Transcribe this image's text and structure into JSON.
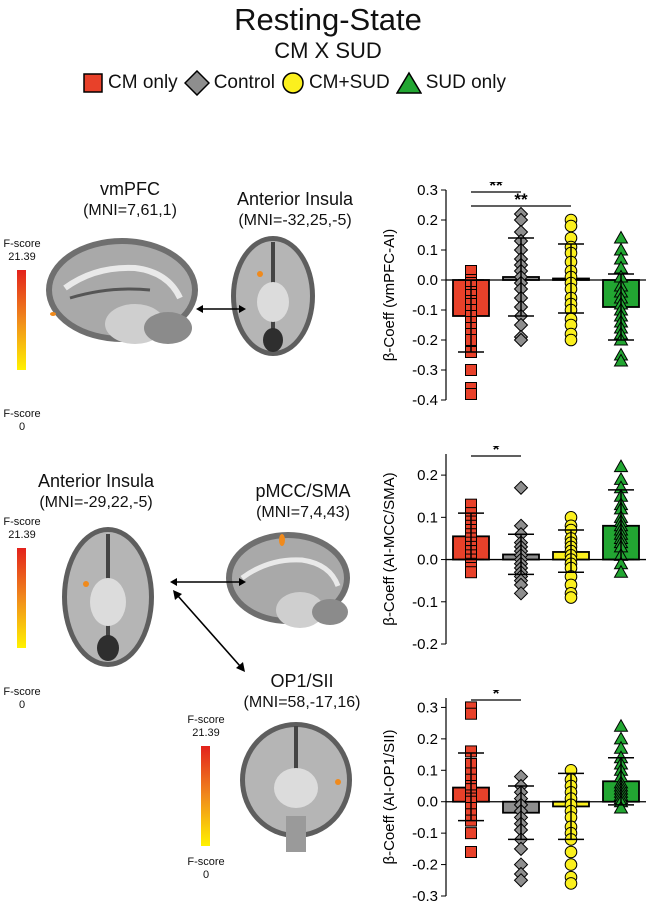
{
  "figure": {
    "title": "Resting-State",
    "subtitle": "CM X SUD",
    "legend": [
      {
        "label": "CM only",
        "marker": "square",
        "color": "#e8412a"
      },
      {
        "label": "Control",
        "marker": "diamond",
        "color": "#8e8e8e"
      },
      {
        "label": "CM+SUD",
        "marker": "circle",
        "color": "#fbf01e"
      },
      {
        "label": "SUD only",
        "marker": "triangle",
        "color": "#22a632"
      }
    ]
  },
  "brain_panels": {
    "row1": {
      "left_region": "vmPFC",
      "left_mni": "(MNI=7,61,1)",
      "right_region": "Anterior Insula",
      "right_mni": "(MNI=-32,25,-5)",
      "cbar_top": "F-score\n21.39",
      "cbar_bottom": "F-score\n0"
    },
    "row2": {
      "left_region": "Anterior Insula",
      "left_mni": "(MNI=-29,22,-5)",
      "right_region": "pMCC/SMA",
      "right_mni": "(MNI=7,4,43)",
      "third_region": "OP1/SII",
      "third_mni": "(MNI=58,-17,16)",
      "cbar_top": "F-score\n21.39",
      "cbar_bottom": "F-score\n0",
      "cbar2_top": "F-score\n21.39",
      "cbar2_bottom": "F-score\n0"
    }
  },
  "chart_data": [
    {
      "type": "bar",
      "categories": [
        "CM only",
        "Control",
        "CM+SUD",
        "SUD only"
      ],
      "colors": [
        "#e8412a",
        "#8e8e8e",
        "#fbf01e",
        "#22a632"
      ],
      "markers": [
        "square",
        "diamond",
        "circle",
        "triangle"
      ],
      "values": [
        -0.12,
        0.01,
        0.005,
        -0.09
      ],
      "error": [
        [
          -0.24,
          0.0
        ],
        [
          -0.12,
          0.14
        ],
        [
          -0.11,
          0.12
        ],
        [
          -0.2,
          0.02
        ]
      ],
      "points": [
        [
          0.03,
          0.0,
          -0.01,
          -0.02,
          -0.04,
          -0.05,
          -0.07,
          -0.08,
          -0.1,
          -0.12,
          -0.14,
          -0.16,
          -0.18,
          -0.2,
          -0.24,
          -0.3,
          -0.36,
          -0.38
        ],
        [
          0.22,
          0.2,
          0.16,
          0.13,
          0.1,
          0.07,
          0.05,
          0.03,
          0.01,
          -0.01,
          -0.03,
          -0.06,
          -0.09,
          -0.12,
          -0.15,
          -0.19,
          -0.2
        ],
        [
          0.2,
          0.18,
          0.14,
          0.11,
          0.09,
          0.06,
          0.03,
          0.01,
          -0.01,
          -0.03,
          -0.06,
          -0.08,
          -0.1,
          -0.13,
          -0.15,
          -0.18,
          -0.2
        ],
        [
          0.14,
          0.1,
          0.07,
          0.04,
          0.01,
          -0.02,
          -0.04,
          -0.06,
          -0.08,
          -0.1,
          -0.12,
          -0.14,
          -0.16,
          -0.18,
          -0.2,
          -0.25,
          -0.27
        ]
      ],
      "ylabel": "β-Coeff (vmPFC-AI)",
      "ylim": [
        -0.4,
        0.3
      ],
      "yticks": [
        "-0.4",
        "-0.3",
        "-0.2",
        "-0.1",
        "0.0",
        "0.1",
        "0.2",
        "0.3"
      ],
      "significance": [
        {
          "from": 0,
          "to": 1,
          "label": "**"
        },
        {
          "from": 0,
          "to": 2,
          "label": "**"
        }
      ]
    },
    {
      "type": "bar",
      "categories": [
        "CM only",
        "Control",
        "CM+SUD",
        "SUD only"
      ],
      "colors": [
        "#e8412a",
        "#8e8e8e",
        "#fbf01e",
        "#22a632"
      ],
      "markers": [
        "square",
        "diamond",
        "circle",
        "triangle"
      ],
      "values": [
        0.055,
        0.012,
        0.018,
        0.08
      ],
      "error": [
        [
          0.0,
          0.11
        ],
        [
          -0.035,
          0.06
        ],
        [
          -0.03,
          0.07
        ],
        [
          0.0,
          0.165
        ]
      ],
      "points": [
        [
          0.13,
          0.11,
          0.09,
          0.08,
          0.07,
          0.06,
          0.05,
          0.04,
          0.03,
          0.02,
          0.02,
          0.01,
          0.0,
          -0.01,
          -0.02,
          -0.03
        ],
        [
          0.17,
          0.08,
          0.06,
          0.04,
          0.03,
          0.02,
          0.01,
          0.0,
          -0.01,
          -0.02,
          -0.03,
          -0.04,
          -0.05,
          -0.06,
          -0.08
        ],
        [
          0.1,
          0.08,
          0.07,
          0.05,
          0.04,
          0.03,
          0.02,
          0.01,
          0.0,
          -0.01,
          -0.02,
          -0.04,
          -0.06,
          -0.08,
          -0.09
        ],
        [
          0.22,
          0.19,
          0.17,
          0.15,
          0.13,
          0.12,
          0.1,
          0.09,
          0.08,
          0.07,
          0.06,
          0.05,
          0.04,
          0.03,
          0.01,
          -0.01,
          -0.03
        ]
      ],
      "ylabel": "β-Coeff (AI-MCC/SMA)",
      "ylim": [
        -0.2,
        0.25
      ],
      "yticks": [
        "-0.2",
        "-0.1",
        "0.0",
        "0.1",
        "0.2"
      ],
      "significance": [
        {
          "from": 0,
          "to": 1,
          "label": "*"
        }
      ]
    },
    {
      "type": "bar",
      "categories": [
        "CM only",
        "Control",
        "CM+SUD",
        "SUD only"
      ],
      "colors": [
        "#e8412a",
        "#8e8e8e",
        "#fbf01e",
        "#22a632"
      ],
      "markers": [
        "square",
        "diamond",
        "circle",
        "triangle"
      ],
      "values": [
        0.045,
        -0.035,
        -0.015,
        0.065
      ],
      "error": [
        [
          -0.06,
          0.155
        ],
        [
          -0.12,
          0.05
        ],
        [
          -0.12,
          0.09
        ],
        [
          -0.01,
          0.14
        ]
      ],
      "points": [
        [
          0.3,
          0.28,
          0.16,
          0.12,
          0.09,
          0.07,
          0.05,
          0.04,
          0.02,
          0.01,
          0.0,
          -0.02,
          -0.04,
          -0.06,
          -0.1,
          -0.16
        ],
        [
          0.08,
          0.05,
          0.03,
          0.01,
          -0.01,
          -0.03,
          -0.05,
          -0.07,
          -0.09,
          -0.12,
          -0.15,
          -0.2,
          -0.23,
          -0.25
        ],
        [
          0.1,
          0.07,
          0.05,
          0.03,
          0.01,
          -0.01,
          -0.03,
          -0.05,
          -0.08,
          -0.1,
          -0.12,
          -0.16,
          -0.2,
          -0.24,
          -0.26
        ],
        [
          0.24,
          0.2,
          0.17,
          0.14,
          0.12,
          0.1,
          0.08,
          0.06,
          0.05,
          0.04,
          0.03,
          0.02,
          0.01,
          0.0,
          -0.02
        ]
      ],
      "ylabel": "β-Coeff (AI-OP1/SII)",
      "ylim": [
        -0.3,
        0.33
      ],
      "yticks": [
        "-0.3",
        "-0.2",
        "-0.1",
        "0.0",
        "0.1",
        "0.2",
        "0.3"
      ],
      "significance": [
        {
          "from": 0,
          "to": 1,
          "label": "*"
        }
      ]
    }
  ]
}
